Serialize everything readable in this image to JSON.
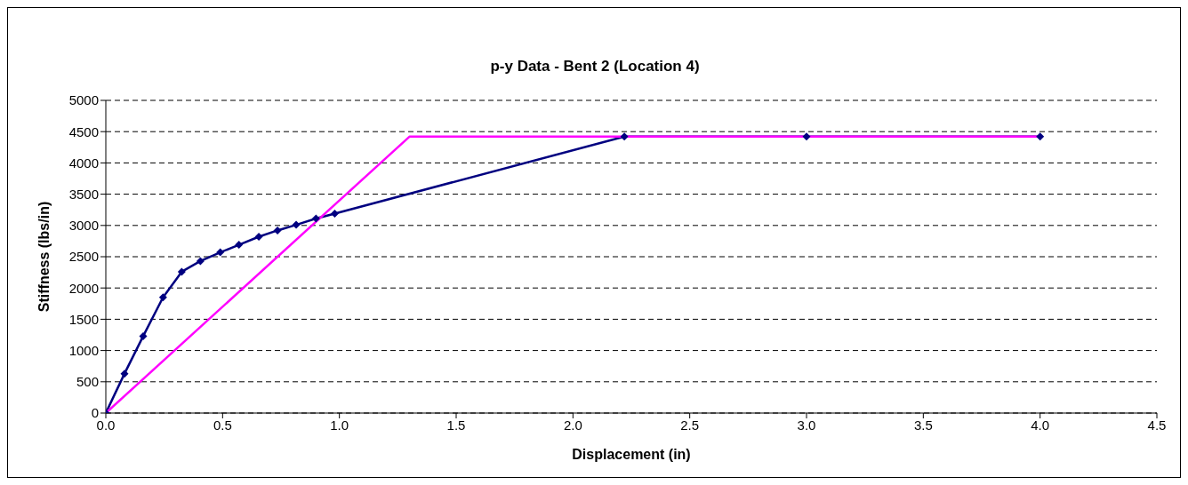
{
  "chart_data": {
    "type": "line",
    "title": "p-y Data - Bent 2 (Location 4)",
    "xlabel": "Displacement (in)",
    "ylabel": "Stiffness (lbs/in)",
    "series": [
      {
        "color": "#000080",
        "marker": "diamond",
        "x": [
          0,
          0.08,
          0.16,
          0.245,
          0.325,
          0.405,
          0.49,
          0.57,
          0.655,
          0.735,
          0.815,
          0.9,
          0.98,
          2.22,
          3.0,
          4.0
        ],
        "values": [
          0,
          630,
          1230,
          1850,
          2260,
          2430,
          2570,
          2690,
          2820,
          2920,
          3010,
          3110,
          3190,
          4420,
          4420,
          4420
        ]
      },
      {
        "color": "#ff00ff",
        "marker": "none",
        "x": [
          0,
          1.3,
          4.0
        ],
        "values": [
          0,
          4420,
          4420
        ]
      }
    ],
    "xlim": [
      0,
      4.5
    ],
    "xticks": [
      {
        "value": 0,
        "label": "0.0"
      },
      {
        "value": 0.5,
        "label": "0.5"
      },
      {
        "value": 1,
        "label": "1.0"
      },
      {
        "value": 1.5,
        "label": "1.5"
      },
      {
        "value": 2,
        "label": "2.0"
      },
      {
        "value": 2.5,
        "label": "2.5"
      },
      {
        "value": 3,
        "label": "3.0"
      },
      {
        "value": 3.5,
        "label": "3.5"
      },
      {
        "value": 4,
        "label": "4.0"
      },
      {
        "value": 4.5,
        "label": "4.5"
      }
    ],
    "ylim": [
      0,
      5000
    ],
    "yticks": [
      0,
      500,
      1000,
      1500,
      2000,
      2500,
      3000,
      3500,
      4000,
      4500,
      5000
    ],
    "grid": "y",
    "line_style": "solid"
  }
}
